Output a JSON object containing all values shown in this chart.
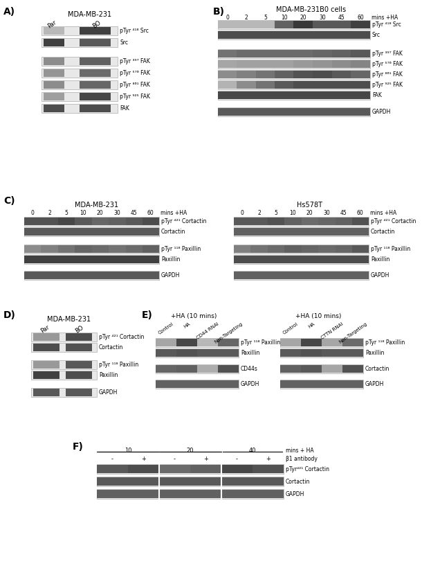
{
  "bg_color": "#ffffff",
  "panel_A": {
    "title": "MDA-MB-231",
    "col_labels": [
      "Par",
      "BO"
    ],
    "blots": [
      {
        "label": "pTyr ⁴¹⁸ Src",
        "group": 1
      },
      {
        "label": "Src",
        "group": 1
      },
      {
        "label": "pTyr ³⁹⁷ FAK",
        "group": 2
      },
      {
        "label": "pTyr ⁵⁷⁶ FAK",
        "group": 2
      },
      {
        "label": "pTyr ⁸⁶¹ FAK",
        "group": 2
      },
      {
        "label": "pTyr ⁹²⁵ FAK",
        "group": 2
      },
      {
        "label": "FAK",
        "group": 2
      }
    ]
  },
  "panel_B": {
    "title": "MDA-MB-231B0 cells",
    "time_labels": [
      "0",
      "2",
      "5",
      "10",
      "20",
      "30",
      "45",
      "60"
    ],
    "mins_label": "mins +HA",
    "blots": [
      {
        "label": "pTyr ⁴¹⁸ Src",
        "group": 1
      },
      {
        "label": "Src",
        "group": 1
      },
      {
        "label": "pTyr ³⁹⁷ FAK",
        "group": 2
      },
      {
        "label": "pTyr ⁵⁷⁶ FAK",
        "group": 2
      },
      {
        "label": "pTyr ⁸⁶¹ FAK",
        "group": 2
      },
      {
        "label": "pTyr ⁹²⁵ FAK",
        "group": 2
      },
      {
        "label": "FAK",
        "group": 2
      },
      {
        "label": "GAPDH",
        "group": 3
      }
    ]
  },
  "panel_C_left": {
    "title": "MDA-MB-231",
    "time_labels": [
      "0",
      "2",
      "5",
      "10",
      "20",
      "30",
      "45",
      "60"
    ],
    "mins_label": "mins +HA",
    "blots": [
      {
        "label": "pTyr ⁴²¹ Cortactin",
        "group": 1
      },
      {
        "label": "Cortactin",
        "group": 1
      },
      {
        "label": "pTyr ¹¹⁸ Paxillin",
        "group": 2
      },
      {
        "label": "Paxillin",
        "group": 2
      },
      {
        "label": "GAPDH",
        "group": 3
      }
    ]
  },
  "panel_C_right": {
    "title": "Hs578T",
    "time_labels": [
      "0",
      "2",
      "5",
      "10",
      "20",
      "30",
      "45",
      "60"
    ],
    "mins_label": "mins +HA",
    "blots": [
      {
        "label": "pTyr ⁴²¹ Cortactin",
        "group": 1
      },
      {
        "label": "Cortactin",
        "group": 1
      },
      {
        "label": "pTyr ¹¹⁸ Paxillin",
        "group": 2
      },
      {
        "label": "Paxillin",
        "group": 2
      },
      {
        "label": "GAPDH",
        "group": 3
      }
    ]
  },
  "panel_D": {
    "title": "MDA-MB-231",
    "col_labels": [
      "Par",
      "BO"
    ],
    "blots": [
      {
        "label": "pTyr ⁴²¹ Cortactin",
        "group": 1
      },
      {
        "label": "Cortactin",
        "group": 1
      },
      {
        "label": "pTyr ¹¹⁸ Paxillin",
        "group": 2
      },
      {
        "label": "Paxillin",
        "group": 2
      },
      {
        "label": "GAPDH",
        "group": 3
      }
    ]
  },
  "panel_E_left": {
    "title": "+HA (10 mins)",
    "col_labels": [
      "Control",
      "HA",
      "CD44 RNAi",
      "Non-Targeting"
    ],
    "blots": [
      {
        "label": "pTyr ¹¹⁸ Paxillin",
        "group": 1
      },
      {
        "label": "Paxillin",
        "group": 1
      },
      {
        "label": "CD44s",
        "group": 2
      },
      {
        "label": "GAPDH",
        "group": 3
      }
    ]
  },
  "panel_E_right": {
    "title": "+HA (10 mins)",
    "col_labels": [
      "Control",
      "HA",
      "CTTN RNAi",
      "Non-Targeting"
    ],
    "blots": [
      {
        "label": "pTyr ¹¹⁸ Paxillin",
        "group": 1
      },
      {
        "label": "Paxillin",
        "group": 1
      },
      {
        "label": "Cortactin",
        "group": 2
      },
      {
        "label": "GAPDH",
        "group": 3
      }
    ]
  },
  "panel_F": {
    "time_groups": [
      "10",
      "20",
      "40"
    ],
    "pm_labels": [
      "-",
      "+",
      "-",
      "+",
      "-",
      "+"
    ],
    "mins_label": "mins + HA",
    "ab_label": "β1 antibody",
    "blots": [
      {
        "label": "pTyr⁴²¹ Cortactin",
        "group": 1
      },
      {
        "label": "Cortactin",
        "group": 1
      },
      {
        "label": "GAPDH",
        "group": 2
      }
    ]
  }
}
